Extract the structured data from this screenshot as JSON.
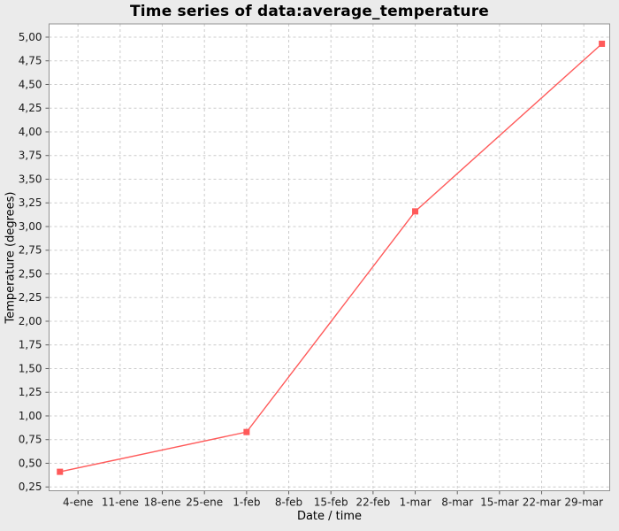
{
  "window": {
    "background_color": "#ebebeb"
  },
  "chart_data": {
    "type": "line",
    "title": "Time series of data:average_temperature",
    "xlabel": "Date / time",
    "ylabel": "Temperature (degrees)",
    "legend_position": "none",
    "grid": "dashed-both-axes",
    "plot_background": "#ffffff",
    "xlim_days": [
      -1.8,
      91.3
    ],
    "ylim": [
      0.21,
      5.14
    ],
    "x_ticks": [
      {
        "pos": 3,
        "label": "4-ene"
      },
      {
        "pos": 10,
        "label": "11-ene"
      },
      {
        "pos": 17,
        "label": "18-ene"
      },
      {
        "pos": 24,
        "label": "25-ene"
      },
      {
        "pos": 31,
        "label": "1-feb"
      },
      {
        "pos": 38,
        "label": "8-feb"
      },
      {
        "pos": 45,
        "label": "15-feb"
      },
      {
        "pos": 52,
        "label": "22-feb"
      },
      {
        "pos": 59,
        "label": "1-mar"
      },
      {
        "pos": 66,
        "label": "8-mar"
      },
      {
        "pos": 73,
        "label": "15-mar"
      },
      {
        "pos": 80,
        "label": "22-mar"
      },
      {
        "pos": 87,
        "label": "29-mar"
      }
    ],
    "y_ticks": [
      {
        "pos": 0.25,
        "label": "0,25"
      },
      {
        "pos": 0.5,
        "label": "0,50"
      },
      {
        "pos": 0.75,
        "label": "0,75"
      },
      {
        "pos": 1.0,
        "label": "1,00"
      },
      {
        "pos": 1.25,
        "label": "1,25"
      },
      {
        "pos": 1.5,
        "label": "1,50"
      },
      {
        "pos": 1.75,
        "label": "1,75"
      },
      {
        "pos": 2.0,
        "label": "2,00"
      },
      {
        "pos": 2.25,
        "label": "2,25"
      },
      {
        "pos": 2.5,
        "label": "2,50"
      },
      {
        "pos": 2.75,
        "label": "2,75"
      },
      {
        "pos": 3.0,
        "label": "3,00"
      },
      {
        "pos": 3.25,
        "label": "3,25"
      },
      {
        "pos": 3.5,
        "label": "3,50"
      },
      {
        "pos": 3.75,
        "label": "3,75"
      },
      {
        "pos": 4.0,
        "label": "4,00"
      },
      {
        "pos": 4.25,
        "label": "4,25"
      },
      {
        "pos": 4.5,
        "label": "4,50"
      },
      {
        "pos": 4.75,
        "label": "4,75"
      },
      {
        "pos": 5.0,
        "label": "5,00"
      }
    ],
    "series": [
      {
        "name": "average_temperature",
        "color": "#ff5a5a",
        "marker": "square",
        "points": [
          {
            "x_day": 0,
            "x_date": "1-ene",
            "y": 0.41
          },
          {
            "x_day": 31,
            "x_date": "1-feb",
            "y": 0.83
          },
          {
            "x_day": 59,
            "x_date": "1-mar",
            "y": 3.16
          },
          {
            "x_day": 90,
            "x_date": "1-abr",
            "y": 4.93
          }
        ]
      }
    ]
  },
  "style": {
    "grid_color": "#cccccc",
    "border_color": "#919191",
    "tick_color": "#5f5f5f",
    "text_color": "#1a1a1a",
    "tick_label_size": 12,
    "line_width": 1.4,
    "marker_size": 7
  }
}
